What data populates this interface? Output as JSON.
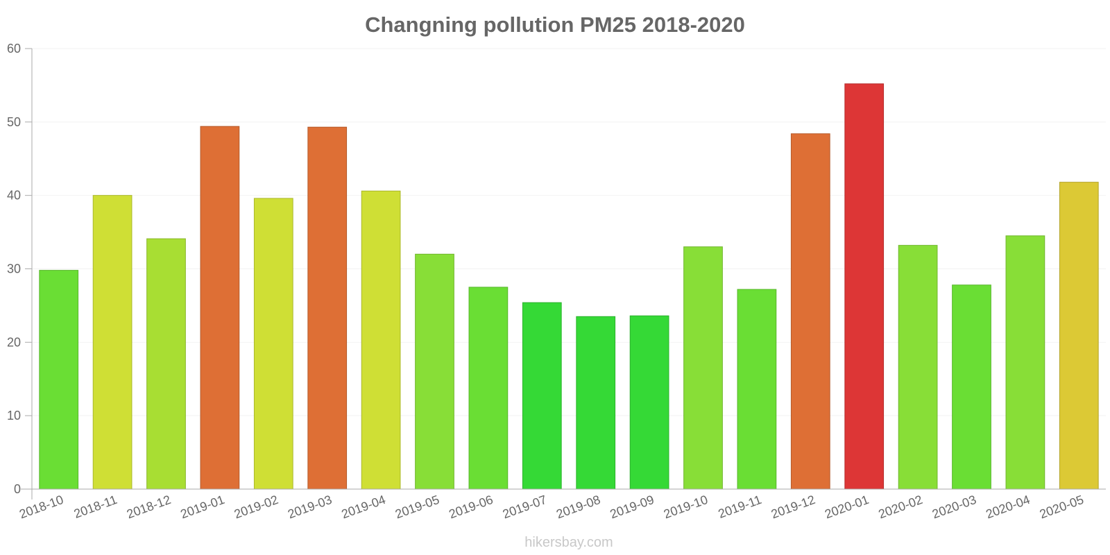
{
  "chart_data": {
    "type": "bar",
    "title": "Changning pollution PM25 2018-2020",
    "xlabel": "",
    "ylabel": "",
    "ylim": [
      0,
      60
    ],
    "yticks": [
      0,
      10,
      20,
      30,
      40,
      50,
      60
    ],
    "grid": true,
    "categories": [
      "2018-10",
      "2018-11",
      "2018-12",
      "2019-01",
      "2019-02",
      "2019-03",
      "2019-04",
      "2019-05",
      "2019-06",
      "2019-07",
      "2019-08",
      "2019-09",
      "2019-10",
      "2019-11",
      "2019-12",
      "2020-01",
      "2020-02",
      "2020-03",
      "2020-04",
      "2020-05"
    ],
    "values": [
      29.8,
      40,
      34.1,
      49.4,
      39.6,
      49.3,
      40.6,
      32,
      27.5,
      25.4,
      23.5,
      23.6,
      33,
      27.2,
      48.4,
      55.2,
      33.2,
      27.8,
      34.5,
      41.8
    ],
    "colors": [
      "#6ade34",
      "#cfdf35",
      "#a8de33",
      "#de6f35",
      "#cfdf35",
      "#de6f35",
      "#cfdf35",
      "#88de37",
      "#6ade34",
      "#35d936",
      "#35d936",
      "#35d936",
      "#88de37",
      "#6ade34",
      "#de6f35",
      "#dd3636",
      "#88de37",
      "#6ade34",
      "#88de37",
      "#dcc935"
    ]
  },
  "watermark": "hikersbay.com"
}
